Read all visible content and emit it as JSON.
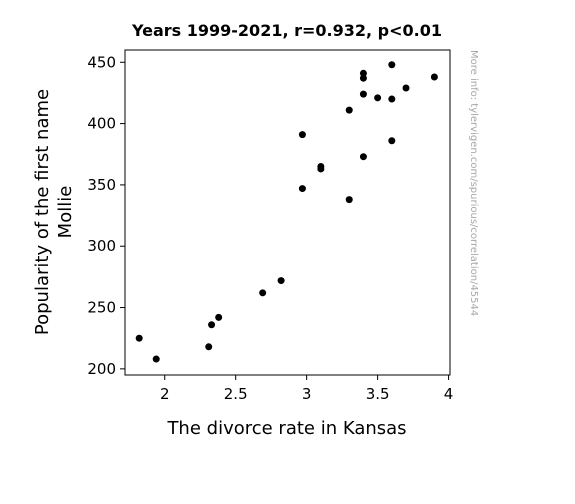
{
  "chart_data": {
    "type": "scatter",
    "title": "Years 1999-2021, r=0.932, p<0.01",
    "xlabel": "The divorce rate in Kansas",
    "ylabel_lines": [
      "Popularity of the first name",
      "Mollie"
    ],
    "xlim": [
      1.72,
      4.01
    ],
    "ylim": [
      195,
      460
    ],
    "xticks": [
      2,
      2.5,
      3,
      3.5,
      4
    ],
    "xtick_labels": [
      "2",
      "2.5",
      "3",
      "3.5",
      "4"
    ],
    "yticks": [
      200,
      250,
      300,
      350,
      400,
      450
    ],
    "ytick_labels": [
      "200",
      "250",
      "300",
      "350",
      "400",
      "450"
    ],
    "grid": false,
    "point_color": "#000000",
    "points": [
      {
        "x": 1.82,
        "y": 225
      },
      {
        "x": 1.94,
        "y": 208
      },
      {
        "x": 2.31,
        "y": 218
      },
      {
        "x": 2.33,
        "y": 236
      },
      {
        "x": 2.38,
        "y": 242
      },
      {
        "x": 2.69,
        "y": 262
      },
      {
        "x": 2.82,
        "y": 272
      },
      {
        "x": 2.97,
        "y": 391
      },
      {
        "x": 2.97,
        "y": 347
      },
      {
        "x": 3.1,
        "y": 365
      },
      {
        "x": 3.1,
        "y": 363
      },
      {
        "x": 3.3,
        "y": 411
      },
      {
        "x": 3.3,
        "y": 338
      },
      {
        "x": 3.4,
        "y": 441
      },
      {
        "x": 3.4,
        "y": 437
      },
      {
        "x": 3.4,
        "y": 424
      },
      {
        "x": 3.4,
        "y": 373
      },
      {
        "x": 3.5,
        "y": 421
      },
      {
        "x": 3.6,
        "y": 448
      },
      {
        "x": 3.6,
        "y": 420
      },
      {
        "x": 3.6,
        "y": 386
      },
      {
        "x": 3.7,
        "y": 429
      },
      {
        "x": 3.9,
        "y": 438
      }
    ]
  },
  "watermark": "More info: tylervigen.com/spurious/correlation/45544"
}
